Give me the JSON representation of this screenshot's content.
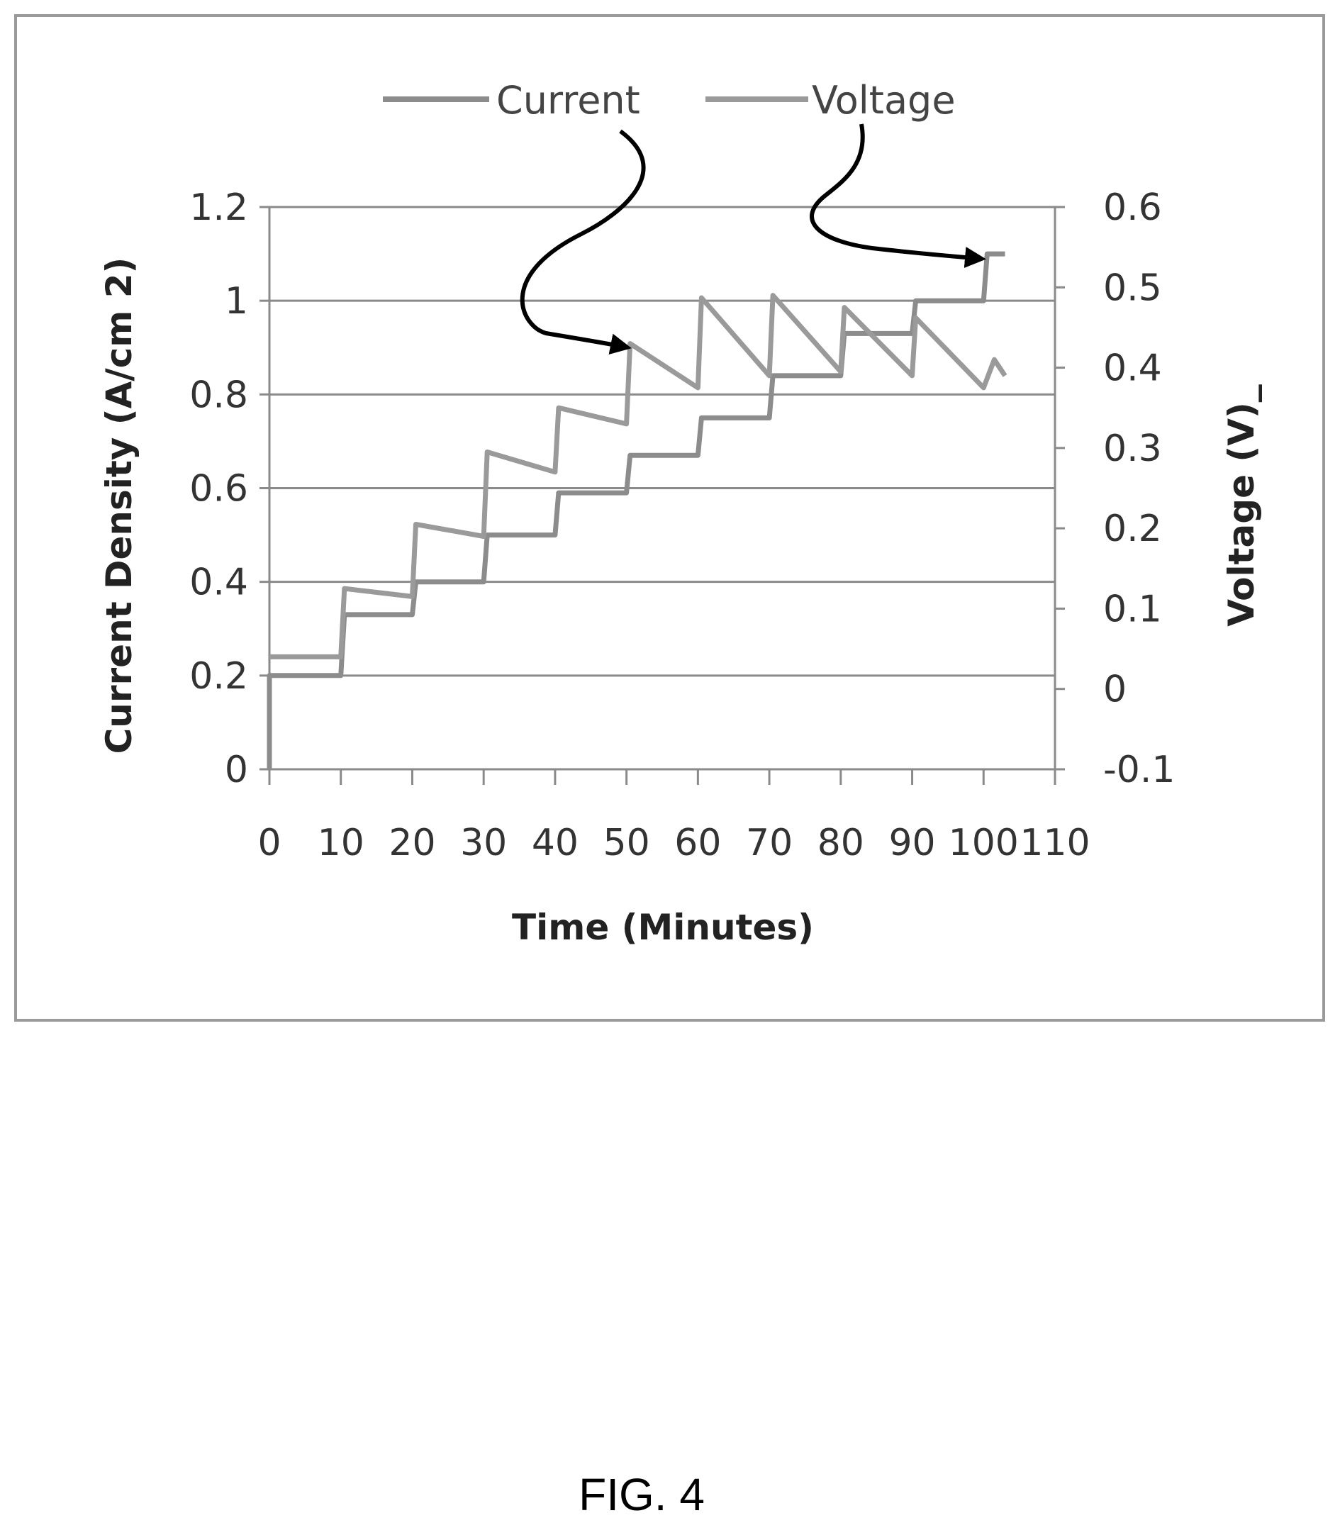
{
  "figure_label": "FIG. 4",
  "chart_data": {
    "type": "line",
    "title": "",
    "xlabel": "Time (Minutes)",
    "ylabel": "Current Density (A/cm 2)",
    "y2label": "Voltage (V)_",
    "xlim": [
      0,
      110
    ],
    "ylim": [
      0,
      1.2
    ],
    "y2lim": [
      -0.1,
      0.6
    ],
    "x_ticks": [
      "0",
      "10",
      "20",
      "30",
      "40",
      "50",
      "60",
      "70",
      "80",
      "90",
      "100",
      "110"
    ],
    "y_ticks": [
      "0",
      "0.2",
      "0.4",
      "0.6",
      "0.8",
      "1",
      "1.2"
    ],
    "y2_ticks": [
      "-0.1",
      "0",
      "0.1",
      "0.2",
      "0.3",
      "0.4",
      "0.5",
      "0.6"
    ],
    "grid": true,
    "legend": "top",
    "series": [
      {
        "name": "Current",
        "axis": "left",
        "color": "#8c8c8c",
        "x": [
          0,
          0,
          0.5,
          10,
          10.5,
          20,
          20.5,
          30,
          30.5,
          40,
          40.5,
          50,
          50.5,
          60,
          60.5,
          70,
          70.5,
          80,
          80.5,
          90,
          90.5,
          100,
          100.5,
          103
        ],
        "y": [
          0,
          0.2,
          0.2,
          0.2,
          0.33,
          0.33,
          0.4,
          0.4,
          0.5,
          0.5,
          0.59,
          0.59,
          0.67,
          0.67,
          0.75,
          0.75,
          0.84,
          0.84,
          0.93,
          0.93,
          1.0,
          1.0,
          1.1,
          1.1
        ]
      },
      {
        "name": "Voltage",
        "axis": "right",
        "color": "#9a9a9a",
        "x": [
          0,
          0.5,
          10,
          10.5,
          20,
          20.5,
          30,
          30.5,
          40,
          40.5,
          50,
          50.5,
          60,
          60.5,
          70,
          70.5,
          80,
          80.5,
          90,
          90.5,
          100,
          101.5,
          103
        ],
        "y": [
          0.04,
          0.04,
          0.04,
          0.125,
          0.115,
          0.205,
          0.19,
          0.295,
          0.27,
          0.35,
          0.33,
          0.43,
          0.375,
          0.487,
          0.39,
          0.49,
          0.395,
          0.475,
          0.39,
          0.462,
          0.375,
          0.41,
          0.39
        ]
      }
    ],
    "annotations": [
      {
        "text": "Current",
        "points_to_series": "Current"
      },
      {
        "text": "Voltage",
        "points_to_series": "Voltage"
      }
    ]
  }
}
